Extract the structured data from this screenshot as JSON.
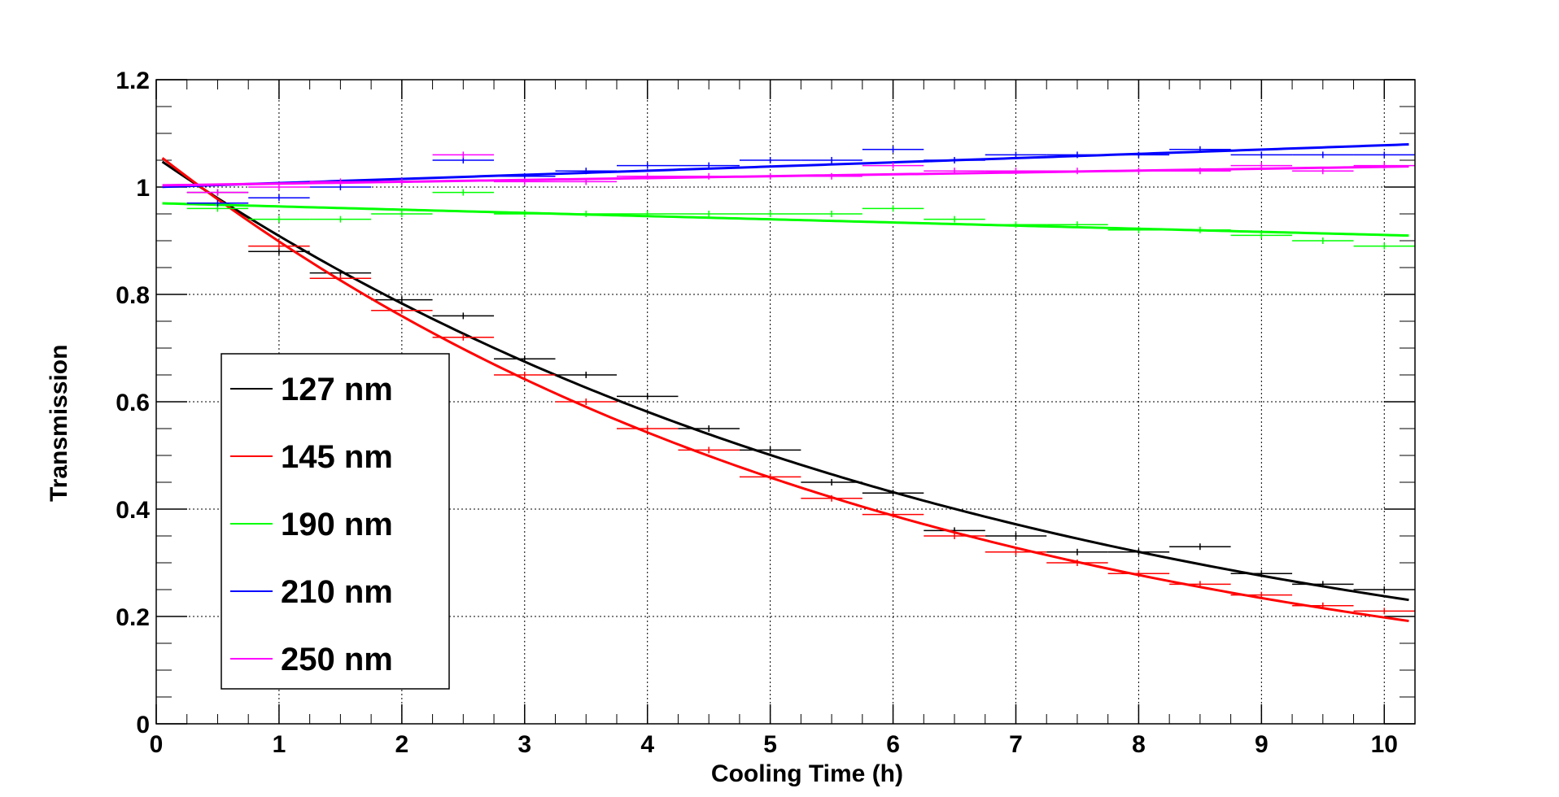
{
  "chart_data": {
    "type": "scatter",
    "title": "",
    "xlabel": "Cooling Time (h)",
    "ylabel": "Transmission",
    "xlim": [
      0,
      10.25
    ],
    "ylim": [
      0,
      1.2
    ],
    "grid": true,
    "legend_position": "left-middle",
    "x_ticks": [
      0,
      1,
      2,
      3,
      4,
      5,
      6,
      7,
      8,
      9,
      10
    ],
    "y_ticks": [
      0,
      0.2,
      0.4,
      0.6,
      0.8,
      1,
      1.2
    ],
    "x_tick_labels": [
      "0",
      "1",
      "2",
      "3",
      "4",
      "5",
      "6",
      "7",
      "8",
      "9",
      "10"
    ],
    "y_tick_labels": [
      "0",
      "0.2",
      "0.4",
      "0.6",
      "0.8",
      "1",
      "1.2"
    ],
    "x_bin_halfwidth": 0.25,
    "x": [
      0.5,
      1.0,
      1.5,
      2.0,
      2.5,
      3.0,
      3.5,
      4.0,
      4.5,
      5.0,
      5.5,
      6.0,
      6.5,
      7.0,
      7.5,
      8.0,
      8.5,
      9.0,
      9.5,
      10.0
    ],
    "series": [
      {
        "name": "127 nm",
        "color": "#000000",
        "points": [
          0.99,
          0.88,
          0.84,
          0.79,
          0.76,
          0.68,
          0.65,
          0.61,
          0.55,
          0.51,
          0.45,
          0.43,
          0.36,
          0.35,
          0.32,
          0.32,
          0.33,
          0.28,
          0.26,
          0.25
        ],
        "fit": {
          "a": 1.055,
          "b": 0.149
        }
      },
      {
        "name": "145 nm",
        "color": "#ff0000",
        "points": [
          0.97,
          0.89,
          0.83,
          0.77,
          0.72,
          0.65,
          0.6,
          0.55,
          0.51,
          0.46,
          0.42,
          0.39,
          0.35,
          0.32,
          0.3,
          0.28,
          0.26,
          0.24,
          0.22,
          0.21
        ],
        "fit": {
          "a": 1.063,
          "b": 0.168
        }
      },
      {
        "name": "190 nm",
        "color": "#00ff00",
        "points": [
          0.96,
          0.94,
          0.94,
          0.95,
          0.99,
          0.95,
          0.95,
          0.95,
          0.95,
          0.95,
          0.95,
          0.96,
          0.94,
          0.93,
          0.93,
          0.92,
          0.92,
          0.91,
          0.9,
          0.89
        ],
        "fit": {
          "a": 0.97,
          "b": 0.0063
        }
      },
      {
        "name": "210 nm",
        "color": "#0000ff",
        "points": [
          0.97,
          0.98,
          1.0,
          1.01,
          1.05,
          1.02,
          1.03,
          1.04,
          1.04,
          1.05,
          1.05,
          1.07,
          1.05,
          1.06,
          1.06,
          1.06,
          1.07,
          1.06,
          1.06,
          1.06
        ],
        "fit": {
          "a": 1.0,
          "b": -0.0075
        }
      },
      {
        "name": "250 nm",
        "color": "#ff00ff",
        "points": [
          0.99,
          1.0,
          1.01,
          1.01,
          1.06,
          1.01,
          1.01,
          1.02,
          1.02,
          1.02,
          1.02,
          1.04,
          1.03,
          1.03,
          1.03,
          1.03,
          1.03,
          1.04,
          1.03,
          1.04
        ],
        "fit": {
          "a": 1.003,
          "b": -0.0034
        }
      }
    ]
  }
}
